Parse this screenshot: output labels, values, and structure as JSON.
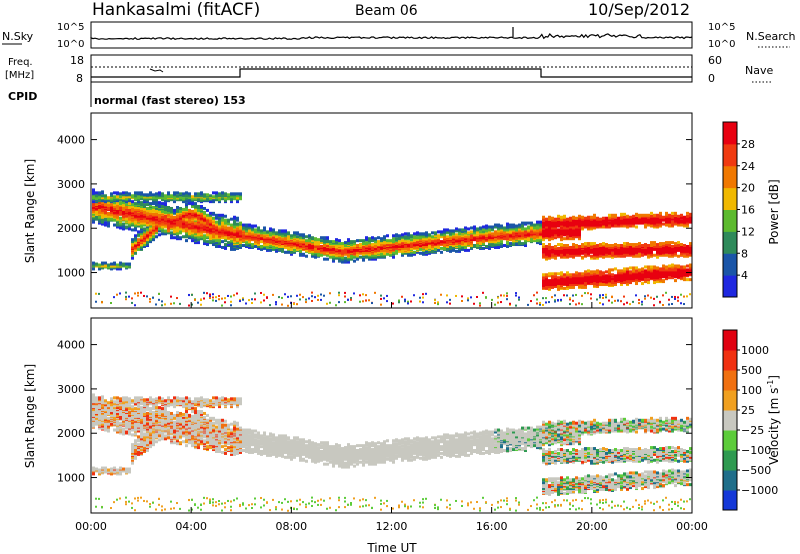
{
  "header": {
    "station": "Hankasalmi (fitACF)",
    "beam": "Beam 06",
    "date": "10/Sep/2012"
  },
  "noise_panel": {
    "left_label": "N.Sky",
    "right_label": "N.Search",
    "left_ticks": [
      "10^5",
      "10^0"
    ],
    "right_ticks": [
      "10^5",
      "10^0"
    ]
  },
  "freq_panel": {
    "left_label_top": "Freq.",
    "left_label_bottom": "[MHz]",
    "right_label": "Nave",
    "left_ticks": [
      "18",
      "8"
    ],
    "right_ticks": [
      "60",
      "0"
    ],
    "cpid_label": "CPID",
    "cpid_text": "normal (fast stereo) 153"
  },
  "colors": {
    "scatter_gray": "#c8c8c0",
    "frame": "#000000"
  },
  "chart_data": [
    {
      "type": "heatmap",
      "name": "Power",
      "ylabel": "Slant Range [km]",
      "ylim": [
        200,
        4600
      ],
      "yticks": [
        "1000",
        "2000",
        "3000",
        "4000"
      ],
      "colorbar": {
        "title": "Power [dB]",
        "ticks": [
          "4",
          "8",
          "12",
          "16",
          "20",
          "24",
          "28"
        ],
        "colors": [
          "#1f28e0",
          "#1a55a8",
          "#2e8a5a",
          "#5cba2e",
          "#f0b800",
          "#f07800",
          "#f03a10",
          "#e80010"
        ]
      }
    },
    {
      "type": "heatmap",
      "name": "Velocity",
      "ylabel": "Slant Range [km]",
      "xlabel": "Time UT",
      "ylim": [
        200,
        4600
      ],
      "yticks": [
        "1000",
        "2000",
        "3000",
        "4000"
      ],
      "xticks": [
        "00:00",
        "04:00",
        "08:00",
        "12:00",
        "16:00",
        "20:00",
        "00:00"
      ],
      "colorbar": {
        "title": "Velocity [m s",
        "title_exp": "-1",
        "title_end": "]",
        "ticks": [
          "1000",
          "500",
          "100",
          "25",
          "−25",
          "−100",
          "−500",
          "−1000"
        ],
        "colors": [
          "#1438d8",
          "#1f6e8a",
          "#2e9a50",
          "#5ccc3a",
          "#c8c8c0",
          "#f0a020",
          "#f07010",
          "#f03010",
          "#e00010"
        ]
      }
    }
  ]
}
